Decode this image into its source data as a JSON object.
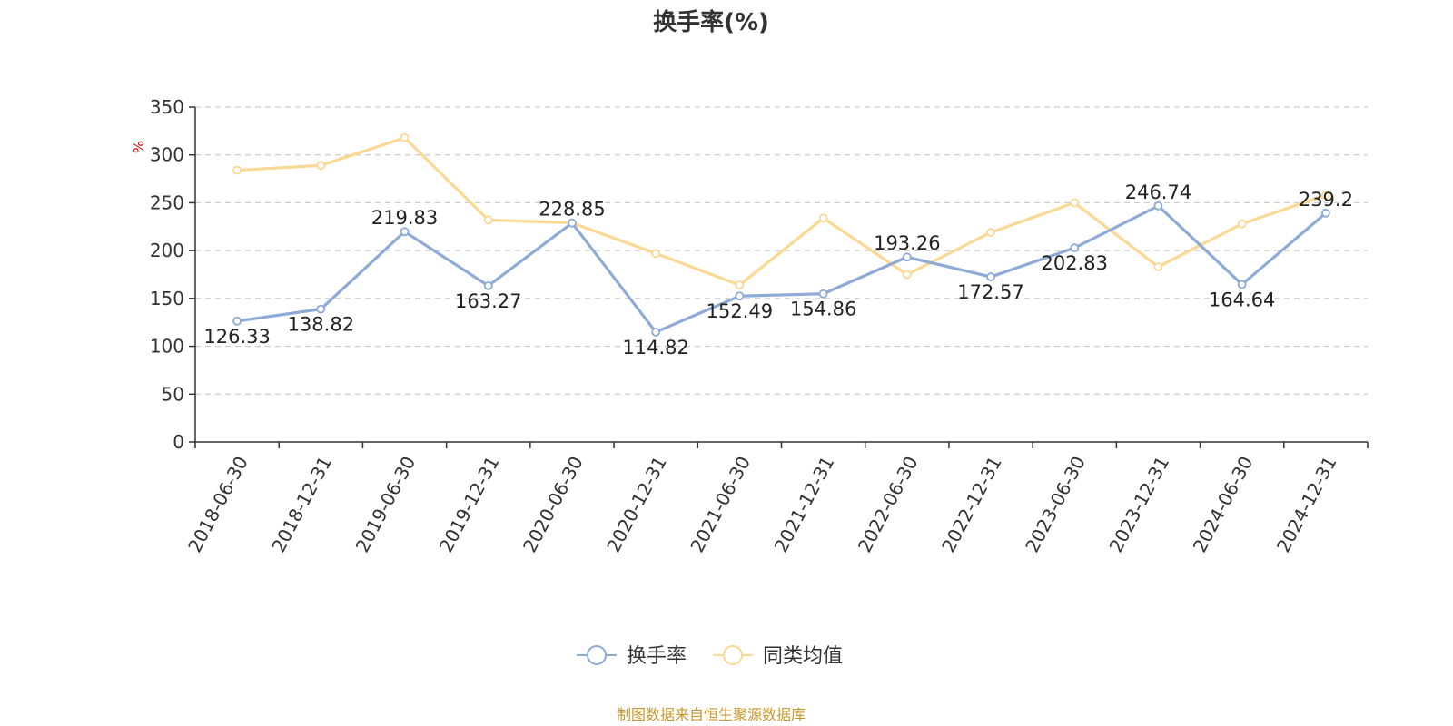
{
  "chart_data": {
    "type": "line",
    "title": "换手率(%)",
    "ylabel": "%",
    "ylim": [
      0,
      350
    ],
    "yticks": [
      0,
      50,
      100,
      150,
      200,
      250,
      300,
      350
    ],
    "grid": true,
    "legend_position": "bottom-center",
    "categories": [
      "2018-06-30",
      "2018-12-31",
      "2019-06-30",
      "2019-12-31",
      "2020-06-30",
      "2020-12-31",
      "2021-06-30",
      "2021-12-31",
      "2022-06-30",
      "2022-12-31",
      "2023-06-30",
      "2023-12-31",
      "2024-06-30",
      "2024-12-31"
    ],
    "series": [
      {
        "name": "换手率",
        "color": "#8eaad6",
        "values": [
          126.33,
          138.82,
          219.83,
          163.27,
          228.85,
          114.82,
          152.49,
          154.86,
          193.26,
          172.57,
          202.83,
          246.74,
          164.64,
          239.2
        ],
        "labels": [
          "126.33",
          "138.82",
          "219.83",
          "163.27",
          "228.85",
          "114.82",
          "152.49",
          "154.86",
          "193.26",
          "172.57",
          "202.83",
          "246.74",
          "164.64",
          "239.2"
        ]
      },
      {
        "name": "同类均值",
        "color": "#fbd893",
        "values": [
          284,
          289,
          318,
          232,
          229,
          197,
          164,
          234,
          175,
          219,
          250,
          183,
          228,
          258
        ]
      }
    ],
    "source": "制图数据来自恒生聚源数据库"
  }
}
